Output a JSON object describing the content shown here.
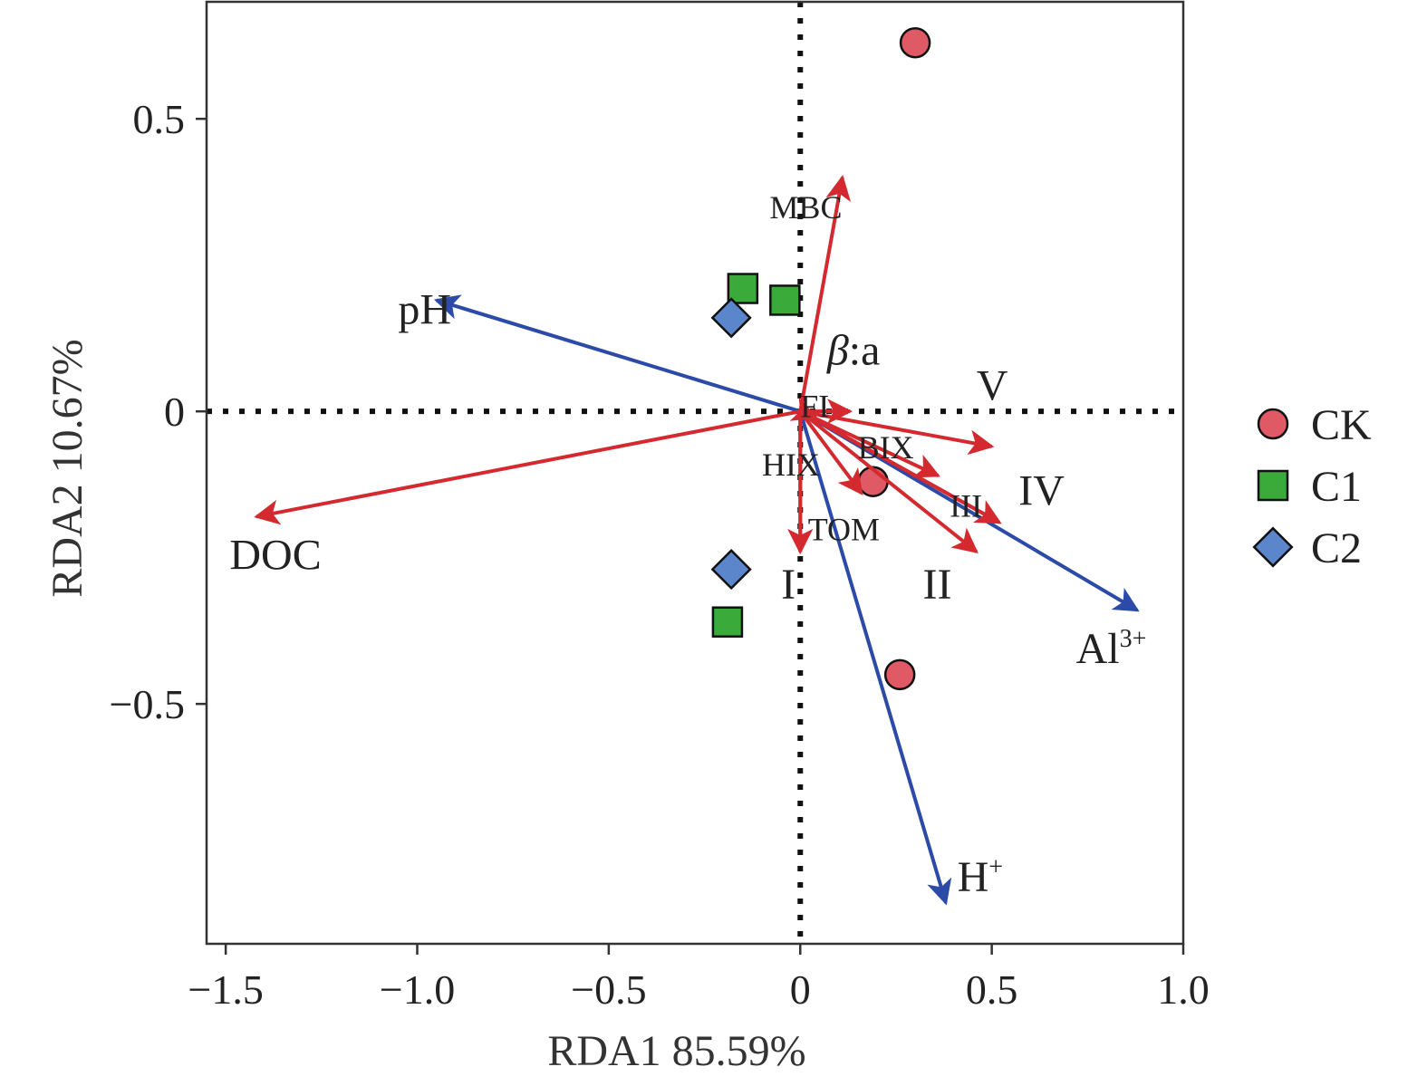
{
  "chart_data": {
    "type": "scatter",
    "subtype": "rda-biplot",
    "xlabel": "RDA1 85.59%",
    "ylabel": "RDA2 10.67%",
    "xlim": [
      -1.55,
      1.0
    ],
    "ylim": [
      -0.91,
      0.7
    ],
    "xticks": [
      -1.5,
      -1.0,
      -0.5,
      0,
      0.5,
      1.0
    ],
    "xtick_labels": [
      "−1.5",
      "−1.0",
      "−0.5",
      "0",
      "0.5",
      "1.0"
    ],
    "yticks": [
      -0.5,
      0,
      0.5
    ],
    "ytick_labels": [
      "−0.5",
      "0",
      "0.5"
    ],
    "reference_lines": {
      "x": 0,
      "y": 0,
      "style": "dotted"
    },
    "legend_position": "right",
    "groups": [
      {
        "name": "CK",
        "marker": "circle",
        "color": "#e05a66"
      },
      {
        "name": "C1",
        "marker": "square",
        "color": "#3aaa3a"
      },
      {
        "name": "C2",
        "marker": "diamond",
        "color": "#5b86cc"
      }
    ],
    "points": [
      {
        "group": "CK",
        "x": 0.3,
        "y": 0.63
      },
      {
        "group": "CK",
        "x": 0.26,
        "y": -0.45
      },
      {
        "group": "CK",
        "x": 0.19,
        "y": -0.12
      },
      {
        "group": "C1",
        "x": -0.15,
        "y": 0.21
      },
      {
        "group": "C1",
        "x": -0.04,
        "y": 0.19
      },
      {
        "group": "C1",
        "x": -0.19,
        "y": -0.36
      },
      {
        "group": "C2",
        "x": -0.18,
        "y": 0.16
      },
      {
        "group": "C2",
        "x": -0.18,
        "y": -0.27
      }
    ],
    "vectors": [
      {
        "name": "pH",
        "sup": "",
        "x": -0.95,
        "y": 0.19,
        "color": "#2c4aa8",
        "label_size": "lg",
        "lx": -1.05,
        "ly": 0.15
      },
      {
        "name": "Al",
        "sup": "3+",
        "x": 0.88,
        "y": -0.34,
        "color": "#2c4aa8",
        "label_size": "lg",
        "lx": 0.72,
        "ly": -0.43
      },
      {
        "name": "H",
        "sup": "+",
        "x": 0.38,
        "y": -0.84,
        "color": "#2c4aa8",
        "label_size": "lg",
        "lx": 0.41,
        "ly": -0.82
      },
      {
        "name": "DOC",
        "sup": "",
        "x": -1.42,
        "y": -0.18,
        "color": "#d42a2f",
        "label_size": "lg",
        "lx": -1.49,
        "ly": -0.27
      },
      {
        "name": "MBC",
        "sup": "",
        "x": 0.11,
        "y": 0.4,
        "color": "#d42a2f",
        "label_size": "sm",
        "lx": -0.08,
        "ly": 0.33
      },
      {
        "name": "β:a",
        "sup": "",
        "x": 0.13,
        "y": 0.0,
        "color": "#d42a2f",
        "label_size": "lg",
        "lx": 0.07,
        "ly": 0.08
      },
      {
        "name": "FI",
        "sup": "",
        "x": 0.04,
        "y": -0.01,
        "color": "#d42a2f",
        "label_size": "sm",
        "lx": 0.0,
        "ly": -0.01
      },
      {
        "name": "V",
        "sup": "",
        "x": 0.5,
        "y": -0.06,
        "color": "#d42a2f",
        "label_size": "lg",
        "lx": 0.46,
        "ly": 0.02
      },
      {
        "name": "BIX",
        "sup": "",
        "x": 0.36,
        "y": -0.11,
        "color": "#d42a2f",
        "label_size": "sm",
        "lx": 0.15,
        "ly": -0.08
      },
      {
        "name": "HIX",
        "sup": "",
        "x": 0.16,
        "y": -0.14,
        "color": "#d42a2f",
        "label_size": "sm",
        "lx": -0.1,
        "ly": -0.11
      },
      {
        "name": "III",
        "sup": "",
        "x": 0.52,
        "y": -0.19,
        "color": "#d42a2f",
        "label_size": "sm",
        "lx": 0.39,
        "ly": -0.18
      },
      {
        "name": "IV",
        "sup": "",
        "x": 0.52,
        "y": -0.19,
        "color": "#d42a2f",
        "label_size": "lg",
        "lx": 0.57,
        "ly": -0.16
      },
      {
        "name": "II",
        "sup": "",
        "x": 0.46,
        "y": -0.24,
        "color": "#d42a2f",
        "label_size": "lg",
        "lx": 0.32,
        "ly": -0.32
      },
      {
        "name": "TOM",
        "sup": "",
        "x": 0.0,
        "y": -0.24,
        "color": "#d42a2f",
        "label_size": "sm",
        "lx": 0.02,
        "ly": -0.22
      },
      {
        "name": "I",
        "sup": "",
        "x": 0.0,
        "y": -0.24,
        "color": "#d42a2f",
        "label_size": "lg",
        "lx": -0.05,
        "ly": -0.32
      }
    ]
  }
}
